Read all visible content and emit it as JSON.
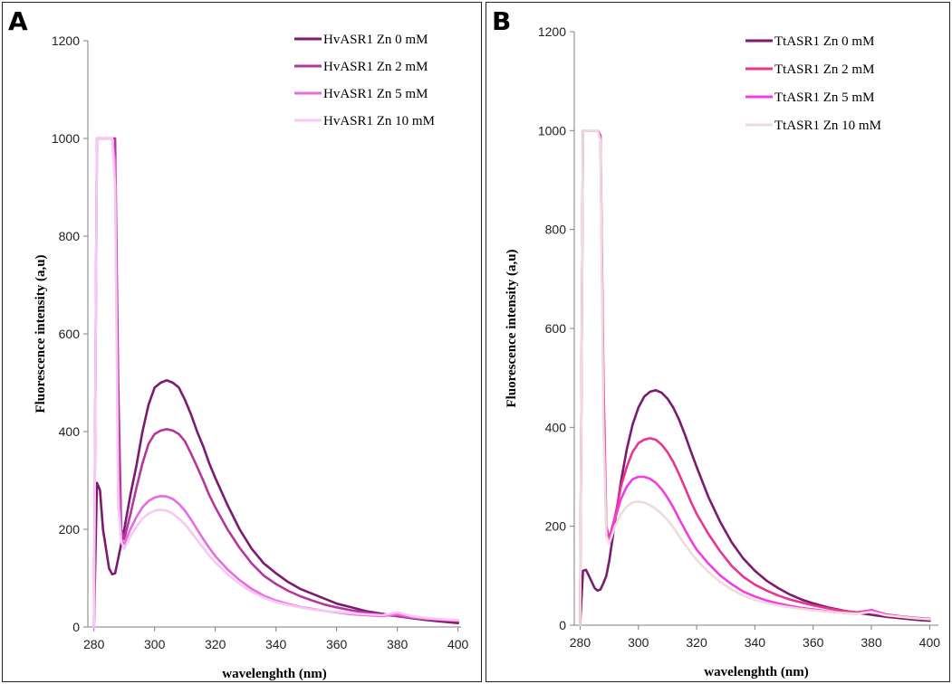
{
  "chart_data": [
    {
      "type": "line",
      "panel_label": "A",
      "xlabel": "wavelenghth (nm)",
      "ylabel": "Fluorescence  intensity (a,u)",
      "xlim": [
        278,
        401
      ],
      "ylim": [
        0,
        1200
      ],
      "xticks": [
        280,
        300,
        320,
        340,
        360,
        380,
        400
      ],
      "yticks": [
        0,
        200,
        400,
        600,
        800,
        1000,
        1200
      ],
      "legend_position": "top-right",
      "series": [
        {
          "name": "HvASR1  Zn  0   mM",
          "color": "#7b1a6e",
          "x": [
            280,
            281,
            282,
            283,
            285,
            286,
            287,
            288,
            289,
            290,
            292,
            294,
            296,
            298,
            300,
            302,
            304,
            306,
            308,
            310,
            312,
            314,
            316,
            318,
            320,
            324,
            328,
            332,
            336,
            340,
            344,
            348,
            352,
            356,
            360,
            365,
            370,
            375,
            380,
            385,
            390,
            395,
            400
          ],
          "y": [
            0,
            295,
            280,
            200,
            120,
            108,
            110,
            140,
            170,
            200,
            270,
            330,
            400,
            455,
            490,
            500,
            505,
            500,
            490,
            465,
            435,
            400,
            370,
            335,
            305,
            250,
            200,
            160,
            130,
            110,
            92,
            78,
            68,
            58,
            48,
            40,
            32,
            27,
            22,
            18,
            14,
            11,
            8
          ]
        },
        {
          "name": "HvASR1  Zn  2   mM",
          "color": "#b5379e",
          "x": [
            280,
            281,
            283,
            285,
            286,
            287,
            288,
            289,
            290,
            292,
            294,
            296,
            298,
            300,
            302,
            304,
            306,
            308,
            310,
            312,
            314,
            316,
            318,
            320,
            324,
            328,
            332,
            336,
            340,
            344,
            348,
            352,
            356,
            360,
            365,
            370,
            375,
            380,
            385,
            390,
            395,
            400
          ],
          "y": [
            0,
            1000,
            1000,
            1000,
            1000,
            1000,
            500,
            200,
            180,
            230,
            285,
            335,
            375,
            395,
            402,
            405,
            402,
            395,
            380,
            355,
            328,
            300,
            270,
            245,
            200,
            162,
            130,
            105,
            88,
            74,
            63,
            54,
            46,
            40,
            34,
            29,
            25,
            22,
            19,
            16,
            14,
            12
          ]
        },
        {
          "name": "HvASR1  Zn  5   mM",
          "color": "#e86be0",
          "x": [
            280,
            281,
            283,
            285,
            286,
            287,
            288,
            289,
            290,
            292,
            294,
            296,
            298,
            300,
            302,
            304,
            306,
            308,
            310,
            312,
            314,
            316,
            318,
            320,
            324,
            328,
            332,
            336,
            340,
            344,
            348,
            352,
            356,
            360,
            365,
            370,
            375,
            380,
            385,
            390,
            395,
            400
          ],
          "y": [
            0,
            1000,
            1000,
            1000,
            1000,
            950,
            300,
            180,
            170,
            200,
            225,
            245,
            258,
            265,
            268,
            267,
            262,
            252,
            238,
            220,
            200,
            180,
            162,
            145,
            118,
            96,
            78,
            64,
            54,
            47,
            41,
            37,
            33,
            30,
            26,
            24,
            22,
            26,
            20,
            17,
            15,
            13
          ]
        },
        {
          "name": "HvASR1  Zn 10 mM",
          "color": "#f7c8f3",
          "x": [
            280,
            281,
            283,
            285,
            286,
            287,
            288,
            289,
            290,
            292,
            294,
            296,
            298,
            300,
            302,
            304,
            306,
            308,
            310,
            312,
            314,
            316,
            318,
            320,
            324,
            328,
            332,
            336,
            340,
            344,
            348,
            352,
            356,
            360,
            365,
            370,
            375,
            380,
            385,
            390,
            395,
            400
          ],
          "y": [
            0,
            1000,
            1000,
            1000,
            1000,
            900,
            250,
            175,
            160,
            185,
            205,
            222,
            232,
            238,
            240,
            238,
            232,
            222,
            210,
            195,
            178,
            162,
            146,
            132,
            108,
            88,
            72,
            60,
            51,
            45,
            40,
            36,
            33,
            31,
            28,
            26,
            24,
            30,
            22,
            18,
            16,
            14
          ]
        }
      ]
    },
    {
      "type": "line",
      "panel_label": "B",
      "xlabel": "wavelenghth (nm)",
      "ylabel": "Fluorescence  intensity (a,u)",
      "xlim": [
        278,
        403
      ],
      "ylim": [
        0,
        1200
      ],
      "xticks": [
        280,
        300,
        320,
        340,
        360,
        380,
        400
      ],
      "yticks": [
        0,
        200,
        400,
        600,
        800,
        1000,
        1200
      ],
      "legend_position": "top-right",
      "series": [
        {
          "name": "TtASR1  Zn  0   mM",
          "color": "#7b1a6e",
          "x": [
            280,
            281,
            282,
            283,
            285,
            286,
            287,
            288,
            289,
            290,
            292,
            294,
            296,
            298,
            300,
            302,
            304,
            306,
            308,
            310,
            312,
            314,
            316,
            318,
            320,
            324,
            328,
            332,
            336,
            340,
            344,
            348,
            352,
            356,
            360,
            365,
            370,
            375,
            380,
            385,
            390,
            395,
            400
          ],
          "y": [
            0,
            110,
            112,
            100,
            75,
            70,
            72,
            85,
            100,
            130,
            210,
            290,
            355,
            405,
            440,
            462,
            472,
            475,
            470,
            458,
            440,
            415,
            385,
            352,
            320,
            260,
            210,
            168,
            135,
            110,
            90,
            75,
            62,
            52,
            44,
            36,
            30,
            25,
            21,
            17,
            14,
            11,
            9
          ]
        },
        {
          "name": "TtASR1  Zn  2   mM",
          "color": "#e8358f",
          "x": [
            280,
            281,
            283,
            285,
            286,
            287,
            288,
            289,
            290,
            292,
            294,
            296,
            298,
            300,
            302,
            304,
            306,
            308,
            310,
            312,
            314,
            316,
            318,
            320,
            324,
            328,
            332,
            336,
            340,
            344,
            348,
            352,
            356,
            360,
            365,
            370,
            375,
            380,
            385,
            390,
            395,
            400
          ],
          "y": [
            0,
            1000,
            1000,
            1000,
            1000,
            990,
            500,
            200,
            175,
            220,
            280,
            320,
            350,
            368,
            375,
            378,
            375,
            365,
            350,
            330,
            305,
            278,
            250,
            225,
            185,
            150,
            120,
            98,
            82,
            70,
            60,
            52,
            46,
            40,
            34,
            29,
            26,
            30,
            22,
            18,
            15,
            13
          ]
        },
        {
          "name": "TtASR1  Zn  5   mM",
          "color": "#f03ee0",
          "x": [
            280,
            281,
            283,
            285,
            286,
            287,
            288,
            289,
            290,
            292,
            294,
            296,
            298,
            300,
            302,
            304,
            306,
            308,
            310,
            312,
            314,
            316,
            318,
            320,
            324,
            328,
            332,
            336,
            340,
            344,
            348,
            352,
            356,
            360,
            365,
            370,
            375,
            380,
            385,
            390,
            395,
            400
          ],
          "y": [
            0,
            1000,
            1000,
            1000,
            1000,
            990,
            450,
            190,
            170,
            215,
            255,
            280,
            295,
            300,
            300,
            296,
            288,
            275,
            258,
            238,
            215,
            193,
            172,
            153,
            125,
            101,
            83,
            68,
            58,
            50,
            44,
            39,
            35,
            32,
            28,
            25,
            23,
            31,
            21,
            17,
            14,
            12
          ]
        },
        {
          "name": "TtASR1  Zn 10 mM",
          "color": "#eedcdc",
          "x": [
            280,
            281,
            283,
            285,
            286,
            287,
            288,
            289,
            290,
            292,
            294,
            296,
            298,
            300,
            302,
            304,
            306,
            308,
            310,
            312,
            314,
            316,
            318,
            320,
            324,
            328,
            332,
            336,
            340,
            344,
            348,
            352,
            356,
            360,
            365,
            370,
            375,
            380,
            385,
            390,
            395,
            400
          ],
          "y": [
            0,
            1000,
            1000,
            1000,
            1000,
            980,
            400,
            180,
            165,
            200,
            225,
            240,
            248,
            250,
            248,
            243,
            235,
            225,
            213,
            198,
            180,
            163,
            147,
            132,
            108,
            88,
            72,
            60,
            51,
            45,
            40,
            36,
            33,
            30,
            27,
            25,
            23,
            27,
            20,
            17,
            14,
            12
          ]
        }
      ]
    }
  ]
}
